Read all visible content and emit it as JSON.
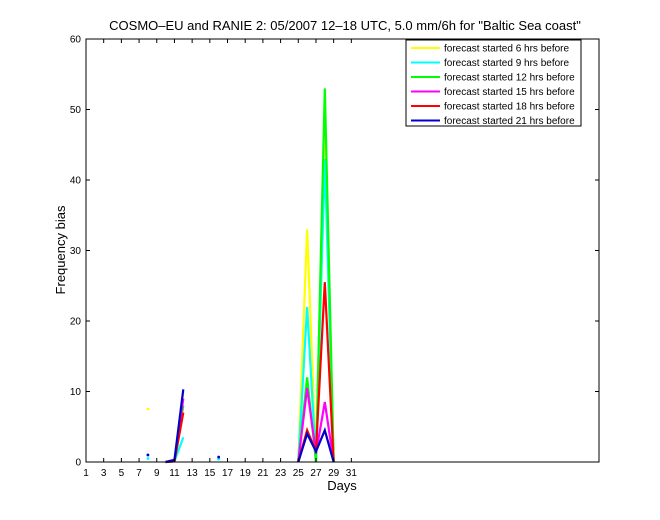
{
  "chart_data": {
    "type": "line",
    "title": "COSMO–EU and RANIE 2: 05/2007 12–18 UTC, 5.0 mm/6h for \"Baltic Sea coast\"",
    "xlabel": "Days",
    "ylabel": "Frequency bias",
    "xlim": [
      1,
      59
    ],
    "ylim": [
      0,
      60
    ],
    "xticks": [
      1,
      3,
      5,
      7,
      9,
      11,
      13,
      15,
      17,
      19,
      21,
      23,
      25,
      27,
      29,
      31
    ],
    "yticks": [
      0,
      10,
      20,
      30,
      40,
      50,
      60
    ],
    "legend_position": "top-right",
    "series": [
      {
        "name": "forecast started 6 hrs before",
        "color": "#ffff00",
        "points": [
          [
            8,
            7.5
          ],
          [
            10,
            0
          ],
          [
            11,
            0.2
          ],
          [
            12,
            10
          ],
          [
            25,
            0
          ],
          [
            26,
            33
          ],
          [
            27,
            0
          ],
          [
            28,
            50
          ],
          [
            29,
            0
          ]
        ]
      },
      {
        "name": "forecast started 9 hrs before",
        "color": "#00ffff",
        "points": [
          [
            8,
            0.5
          ],
          [
            10,
            0
          ],
          [
            11,
            0.1
          ],
          [
            12,
            3.5
          ],
          [
            16,
            0.4
          ],
          [
            25,
            0
          ],
          [
            26,
            22
          ],
          [
            27,
            0
          ],
          [
            28,
            43
          ],
          [
            29,
            0
          ]
        ]
      },
      {
        "name": "forecast started 12 hrs before",
        "color": "#00ff00",
        "points": [
          [
            10,
            0
          ],
          [
            11,
            0.2
          ],
          [
            12,
            8
          ],
          [
            25,
            0
          ],
          [
            26,
            12
          ],
          [
            27,
            0
          ],
          [
            28,
            53
          ],
          [
            29,
            0
          ]
        ]
      },
      {
        "name": "forecast started 15 hrs before",
        "color": "#ff00ff",
        "points": [
          [
            10,
            0
          ],
          [
            11,
            0.1
          ],
          [
            12,
            9
          ],
          [
            25,
            0
          ],
          [
            26,
            10.5
          ],
          [
            27,
            1.2
          ],
          [
            28,
            8.5
          ],
          [
            29,
            0
          ]
        ]
      },
      {
        "name": "forecast started 18 hrs before",
        "color": "#ff0000",
        "points": [
          [
            10,
            0
          ],
          [
            11,
            0.1
          ],
          [
            12,
            7
          ],
          [
            25,
            0
          ],
          [
            26,
            4.5
          ],
          [
            27,
            1.5
          ],
          [
            28,
            25.5
          ],
          [
            29,
            0
          ]
        ]
      },
      {
        "name": "forecast started 21 hrs before",
        "color": "#0000cc",
        "points": [
          [
            8,
            1
          ],
          [
            10,
            0
          ],
          [
            11,
            0.3
          ],
          [
            12,
            10.3
          ],
          [
            16,
            0.7
          ],
          [
            25,
            0
          ],
          [
            26,
            4
          ],
          [
            27,
            1.5
          ],
          [
            28,
            4.5
          ],
          [
            29,
            0
          ]
        ]
      }
    ]
  }
}
